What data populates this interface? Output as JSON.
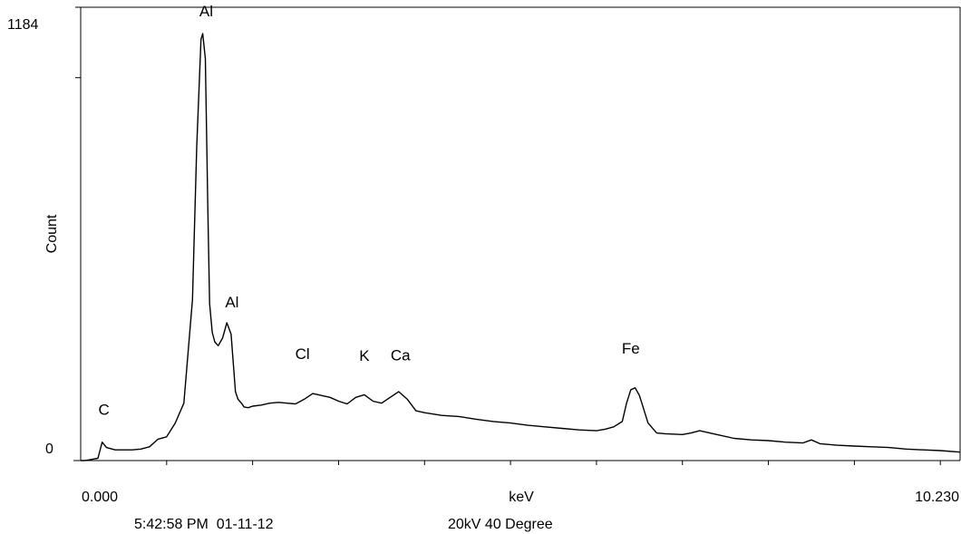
{
  "chart_data": {
    "type": "line",
    "title": "",
    "xlabel": "keV",
    "ylabel": "Count",
    "xlim": [
      0.0,
      10.23
    ],
    "ylim": [
      0,
      1184
    ],
    "x_tick_labels": {
      "start": "0.000",
      "end": "10.230"
    },
    "y_tick_labels": {
      "top": "1184",
      "bottom": "0"
    },
    "x_minor_ticks": [
      1.0,
      2.0,
      3.0,
      4.0,
      5.0,
      6.0,
      7.0,
      8.0,
      9.0,
      10.0
    ],
    "y_major_tick": 1000,
    "line_color": "#000000",
    "background": "#ffffff",
    "series": [
      {
        "x": [
          0.0,
          0.05,
          0.1,
          0.15,
          0.2,
          0.25,
          0.3,
          0.4,
          0.5,
          0.6,
          0.7,
          0.8,
          0.9,
          1.0,
          1.1,
          1.2,
          1.3,
          1.35,
          1.4,
          1.42,
          1.45,
          1.48,
          1.5,
          1.53,
          1.56,
          1.6,
          1.65,
          1.7,
          1.75,
          1.8,
          1.83,
          1.87,
          1.9,
          1.95,
          2.0,
          2.1,
          2.2,
          2.3,
          2.4,
          2.5,
          2.6,
          2.7,
          2.8,
          2.9,
          3.0,
          3.1,
          3.2,
          3.3,
          3.4,
          3.5,
          3.6,
          3.7,
          3.8,
          3.9,
          4.0,
          4.2,
          4.4,
          4.6,
          4.8,
          5.0,
          5.2,
          5.4,
          5.6,
          5.8,
          6.0,
          6.1,
          6.2,
          6.3,
          6.35,
          6.4,
          6.45,
          6.5,
          6.6,
          6.7,
          6.8,
          7.0,
          7.1,
          7.2,
          7.4,
          7.6,
          7.8,
          8.0,
          8.2,
          8.4,
          8.5,
          8.6,
          8.8,
          9.0,
          9.2,
          9.4,
          9.6,
          9.8,
          10.0,
          10.23
        ],
        "y": [
          0,
          0,
          2,
          4,
          6,
          48,
          34,
          28,
          28,
          28,
          30,
          36,
          56,
          62,
          98,
          150,
          420,
          820,
          1100,
          1115,
          1050,
          650,
          410,
          335,
          310,
          300,
          320,
          360,
          330,
          180,
          160,
          150,
          140,
          138,
          142,
          145,
          150,
          152,
          150,
          148,
          160,
          175,
          170,
          165,
          155,
          148,
          165,
          172,
          155,
          150,
          165,
          180,
          160,
          130,
          125,
          118,
          115,
          108,
          102,
          98,
          92,
          88,
          84,
          80,
          78,
          82,
          88,
          102,
          150,
          185,
          190,
          170,
          98,
          72,
          70,
          68,
          72,
          78,
          68,
          58,
          54,
          52,
          48,
          46,
          54,
          44,
          40,
          38,
          36,
          34,
          30,
          28,
          26,
          22
        ],
        "peak_labels": [
          {
            "text": "C",
            "x": 0.27,
            "y": 120
          },
          {
            "text": "Al",
            "x": 1.46,
            "y": 1160
          },
          {
            "text": "Al",
            "x": 1.76,
            "y": 400
          },
          {
            "text": "Cl",
            "x": 2.58,
            "y": 265
          },
          {
            "text": "K",
            "x": 3.3,
            "y": 260
          },
          {
            "text": "Ca",
            "x": 3.72,
            "y": 262
          },
          {
            "text": "Fe",
            "x": 6.4,
            "y": 280
          }
        ]
      }
    ]
  },
  "footer": {
    "timestamp": "5:42:58 PM  01-11-12",
    "conditions": "20kV 40 Degree"
  }
}
